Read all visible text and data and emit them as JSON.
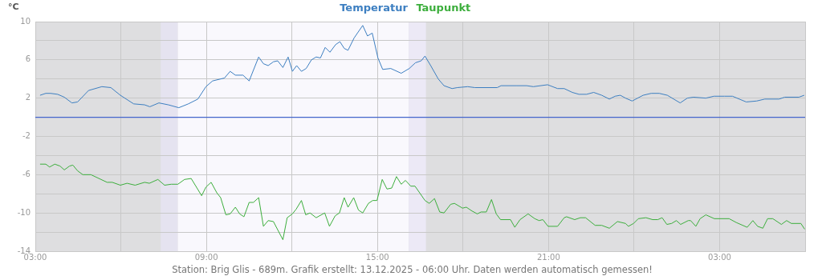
{
  "chart_data": {
    "type": "line",
    "ylabel": "°C",
    "legend": "top",
    "grid": true,
    "marker": "none",
    "annotations": [
      "Station: Brig Glis - 689m. Grafik erstellt: 13.12.2025 - 06:00 Uhr. Daten werden automatisch gemessen!"
    ],
    "xlim": [
      "2025-12-12T03:00",
      "2025-12-13T06:00"
    ],
    "xticks": [
      {
        "value": "2025-12-12T03:00",
        "label": "03:00"
      },
      {
        "value": "2025-12-12T06:00",
        "label": null
      },
      {
        "value": "2025-12-12T09:00",
        "label": "09:00"
      },
      {
        "value": "2025-12-12T12:00",
        "label": null
      },
      {
        "value": "2025-12-12T15:00",
        "label": "15:00"
      },
      {
        "value": "2025-12-12T18:00",
        "label": null
      },
      {
        "value": "2025-12-12T21:00",
        "label": "21:00"
      },
      {
        "value": "2025-12-13T00:00",
        "label": null
      },
      {
        "value": "2025-12-13T03:00",
        "label": "03:00"
      },
      {
        "value": "2025-12-13T06:00",
        "label": null
      }
    ],
    "ylim": [
      -14,
      10
    ],
    "yticks": [
      -14,
      {
        "value": -12,
        "label": null
      },
      -10,
      {
        "value": -8,
        "label": null
      },
      -6,
      {
        "value": -4,
        "label": null
      },
      -2,
      {
        "value": 0,
        "label": null
      },
      2,
      {
        "value": 4,
        "label": null
      },
      6,
      {
        "value": 8,
        "label": null
      },
      10
    ],
    "ref_lines": [
      {
        "axis": "y",
        "value": 0,
        "label": null,
        "color": "#4466cc"
      }
    ],
    "bands": [
      {
        "axis": "x",
        "from": "2025-12-12T07:24",
        "to": "2025-12-12T08:00",
        "label": null,
        "color": "#e5e3f0"
      },
      {
        "axis": "x",
        "from": "2025-12-12T08:00",
        "to": "2025-12-12T16:06",
        "label": null,
        "color": "#f9f8fd"
      },
      {
        "axis": "x",
        "from": "2025-12-12T16:06",
        "to": "2025-12-12T16:42",
        "label": null,
        "color": "#ece9f6"
      }
    ],
    "series": [
      {
        "name": "Temperatur",
        "color": "#3d7fc1",
        "x": [
          "2025-12-12T03:10",
          "2025-12-12T03:22",
          "2025-12-12T03:32",
          "2025-12-12T03:47",
          "2025-12-12T04:01",
          "2025-12-12T04:17",
          "2025-12-12T04:29",
          "2025-12-12T04:52",
          "2025-12-12T05:20",
          "2025-12-12T05:39",
          "2025-12-12T05:59",
          "2025-12-12T06:27",
          "2025-12-12T06:50",
          "2025-12-12T07:01",
          "2025-12-12T07:20",
          "2025-12-12T07:40",
          "2025-12-12T08:02",
          "2025-12-12T08:22",
          "2025-12-12T08:42",
          "2025-12-12T08:59",
          "2025-12-12T09:13",
          "2025-12-12T09:38",
          "2025-12-12T09:50",
          "2025-12-12T10:01",
          "2025-12-12T10:17",
          "2025-12-12T10:30",
          "2025-12-12T10:50",
          "2025-12-12T11:00",
          "2025-12-12T11:10",
          "2025-12-12T11:21",
          "2025-12-12T11:30",
          "2025-12-12T11:41",
          "2025-12-12T11:52",
          "2025-12-12T12:01",
          "2025-12-12T12:10",
          "2025-12-12T12:20",
          "2025-12-12T12:30",
          "2025-12-12T12:41",
          "2025-12-12T12:51",
          "2025-12-12T13:00",
          "2025-12-12T13:10",
          "2025-12-12T13:20",
          "2025-12-12T13:32",
          "2025-12-12T13:41",
          "2025-12-12T13:50",
          "2025-12-12T13:58",
          "2025-12-12T14:11",
          "2025-12-12T14:29",
          "2025-12-12T14:39",
          "2025-12-12T14:49",
          "2025-12-12T15:01",
          "2025-12-12T15:11",
          "2025-12-12T15:28",
          "2025-12-12T15:50",
          "2025-12-12T16:07",
          "2025-12-12T16:20",
          "2025-12-12T16:32",
          "2025-12-12T16:40",
          "2025-12-12T16:52",
          "2025-12-12T17:08",
          "2025-12-12T17:20",
          "2025-12-12T17:37",
          "2025-12-12T17:48",
          "2025-12-12T18:10",
          "2025-12-12T18:25",
          "2025-12-12T19:12",
          "2025-12-12T19:20",
          "2025-12-12T19:52",
          "2025-12-12T20:14",
          "2025-12-12T20:28",
          "2025-12-12T20:58",
          "2025-12-12T21:19",
          "2025-12-12T21:33",
          "2025-12-12T21:50",
          "2025-12-12T22:04",
          "2025-12-12T22:20",
          "2025-12-12T22:35",
          "2025-12-12T22:52",
          "2025-12-12T23:08",
          "2025-12-12T23:20",
          "2025-12-12T23:31",
          "2025-12-12T23:42",
          "2025-12-12T23:56",
          "2025-12-13T00:19",
          "2025-12-13T00:36",
          "2025-12-13T00:53",
          "2025-12-13T01:10",
          "2025-12-13T01:37",
          "2025-12-13T01:52",
          "2025-12-13T02:05",
          "2025-12-13T02:31",
          "2025-12-13T02:48",
          "2025-12-13T03:10",
          "2025-12-13T03:27",
          "2025-12-13T03:56",
          "2025-12-13T04:18",
          "2025-12-13T04:35",
          "2025-12-13T05:05",
          "2025-12-13T05:17",
          "2025-12-13T05:47",
          "2025-12-13T05:58"
        ],
        "values": [
          2.3,
          2.5,
          2.5,
          2.4,
          2.1,
          1.5,
          1.6,
          2.8,
          3.2,
          3.1,
          2.3,
          1.4,
          1.3,
          1.1,
          1.5,
          1.3,
          1.0,
          1.4,
          1.9,
          3.2,
          3.8,
          4.1,
          4.8,
          4.4,
          4.4,
          3.8,
          6.3,
          5.6,
          5.4,
          5.8,
          5.9,
          5.2,
          6.3,
          4.8,
          5.4,
          4.8,
          5.1,
          6.0,
          6.3,
          6.2,
          7.3,
          6.8,
          7.6,
          7.9,
          7.2,
          7.0,
          8.3,
          9.6,
          8.5,
          8.8,
          6.2,
          5.0,
          5.1,
          4.6,
          5.1,
          5.7,
          5.9,
          6.4,
          5.4,
          4.0,
          3.3,
          3.0,
          3.1,
          3.2,
          3.1,
          3.1,
          3.3,
          3.3,
          3.3,
          3.2,
          3.4,
          3.0,
          3.0,
          2.6,
          2.4,
          2.4,
          2.6,
          2.3,
          1.9,
          2.2,
          2.3,
          2.0,
          1.7,
          2.3,
          2.5,
          2.5,
          2.3,
          1.5,
          2.0,
          2.1,
          2.0,
          2.2,
          2.2,
          2.2,
          1.6,
          1.7,
          1.9,
          1.9,
          2.1,
          2.1,
          2.3
        ]
      },
      {
        "name": "Taupunkt",
        "color": "#3cae3c",
        "x": [
          "2025-12-12T03:10",
          "2025-12-12T03:22",
          "2025-12-12T03:30",
          "2025-12-12T03:41",
          "2025-12-12T03:52",
          "2025-12-12T04:01",
          "2025-12-12T04:12",
          "2025-12-12T04:19",
          "2025-12-12T04:29",
          "2025-12-12T04:40",
          "2025-12-12T04:57",
          "2025-12-12T05:31",
          "2025-12-12T05:42",
          "2025-12-12T05:59",
          "2025-12-12T06:13",
          "2025-12-12T06:30",
          "2025-12-12T06:50",
          "2025-12-12T07:00",
          "2025-12-12T07:18",
          "2025-12-12T07:32",
          "2025-12-12T07:46",
          "2025-12-12T08:00",
          "2025-12-12T08:14",
          "2025-12-12T08:28",
          "2025-12-12T08:50",
          "2025-12-12T08:59",
          "2025-12-12T09:10",
          "2025-12-12T09:22",
          "2025-12-12T09:30",
          "2025-12-12T09:41",
          "2025-12-12T09:50",
          "2025-12-12T10:01",
          "2025-12-12T10:10",
          "2025-12-12T10:19",
          "2025-12-12T10:30",
          "2025-12-12T10:39",
          "2025-12-12T10:50",
          "2025-12-12T11:00",
          "2025-12-12T11:10",
          "2025-12-12T11:21",
          "2025-12-12T11:41",
          "2025-12-12T11:50",
          "2025-12-12T12:01",
          "2025-12-12T12:09",
          "2025-12-12T12:20",
          "2025-12-12T12:29",
          "2025-12-12T12:38",
          "2025-12-12T12:51",
          "2025-12-12T13:09",
          "2025-12-12T13:19",
          "2025-12-12T13:31",
          "2025-12-12T13:40",
          "2025-12-12T13:50",
          "2025-12-12T13:58",
          "2025-12-12T14:10",
          "2025-12-12T14:20",
          "2025-12-12T14:29",
          "2025-12-12T14:41",
          "2025-12-12T14:50",
          "2025-12-12T14:59",
          "2025-12-12T15:10",
          "2025-12-12T15:20",
          "2025-12-12T15:30",
          "2025-12-12T15:40",
          "2025-12-12T15:50",
          "2025-12-12T15:59",
          "2025-12-12T16:10",
          "2025-12-12T16:19",
          "2025-12-12T16:40",
          "2025-12-12T16:49",
          "2025-12-12T17:00",
          "2025-12-12T17:11",
          "2025-12-12T17:20",
          "2025-12-12T17:34",
          "2025-12-12T17:42",
          "2025-12-12T17:59",
          "2025-12-12T18:07",
          "2025-12-12T18:19",
          "2025-12-12T18:30",
          "2025-12-12T18:38",
          "2025-12-12T18:49",
          "2025-12-12T19:00",
          "2025-12-12T19:10",
          "2025-12-12T19:19",
          "2025-12-12T19:40",
          "2025-12-12T19:49",
          "2025-12-12T20:00",
          "2025-12-12T20:17",
          "2025-12-12T20:31",
          "2025-12-12T20:40",
          "2025-12-12T20:48",
          "2025-12-12T20:59",
          "2025-12-12T21:19",
          "2025-12-12T21:33",
          "2025-12-12T21:38",
          "2025-12-12T21:55",
          "2025-12-12T22:07",
          "2025-12-12T22:18",
          "2025-12-12T22:38",
          "2025-12-12T22:52",
          "2025-12-12T23:08",
          "2025-12-12T23:25",
          "2025-12-12T23:42",
          "2025-12-12T23:48",
          "2025-12-12T23:59",
          "2025-12-13T00:09",
          "2025-12-13T00:25",
          "2025-12-13T00:39",
          "2025-12-13T00:50",
          "2025-12-13T00:59",
          "2025-12-13T01:09",
          "2025-12-13T01:19",
          "2025-12-13T01:29",
          "2025-12-13T01:38",
          "2025-12-13T01:54",
          "2025-12-13T01:59",
          "2025-12-13T02:10",
          "2025-12-13T02:19",
          "2025-12-13T02:31",
          "2025-12-13T02:49",
          "2025-12-13T03:20",
          "2025-12-13T03:35",
          "2025-12-13T03:58",
          "2025-12-13T04:10",
          "2025-12-13T04:20",
          "2025-12-13T04:31",
          "2025-12-13T04:41",
          "2025-12-13T04:52",
          "2025-12-13T05:10",
          "2025-12-13T05:21",
          "2025-12-13T05:31",
          "2025-12-13T05:51",
          "2025-12-13T05:59"
        ],
        "values": [
          -4.9,
          -4.9,
          -5.2,
          -4.9,
          -5.1,
          -5.5,
          -5.1,
          -5.0,
          -5.6,
          -6.0,
          -6.0,
          -6.8,
          -6.8,
          -7.1,
          -6.9,
          -7.1,
          -6.8,
          -6.9,
          -6.5,
          -7.1,
          -7.0,
          -7.0,
          -6.5,
          -6.4,
          -8.2,
          -7.3,
          -6.8,
          -7.9,
          -8.4,
          -10.2,
          -10.1,
          -9.4,
          -10.1,
          -10.4,
          -8.9,
          -8.9,
          -8.4,
          -11.4,
          -10.8,
          -10.9,
          -12.8,
          -10.5,
          -10.1,
          -9.6,
          -8.7,
          -10.2,
          -10.0,
          -10.5,
          -10.0,
          -11.4,
          -10.3,
          -10.0,
          -8.4,
          -9.4,
          -8.4,
          -9.7,
          -10.0,
          -9.0,
          -8.7,
          -8.7,
          -6.5,
          -7.5,
          -7.4,
          -6.2,
          -7.0,
          -6.6,
          -7.2,
          -7.2,
          -8.7,
          -9.0,
          -8.5,
          -9.9,
          -10.0,
          -9.1,
          -9.0,
          -9.5,
          -9.4,
          -9.8,
          -10.1,
          -9.9,
          -9.9,
          -8.6,
          -10.1,
          -10.7,
          -10.7,
          -11.5,
          -10.7,
          -10.1,
          -10.6,
          -10.8,
          -10.7,
          -11.4,
          -11.4,
          -10.5,
          -10.4,
          -10.7,
          -10.5,
          -10.5,
          -11.3,
          -11.3,
          -11.6,
          -10.9,
          -11.1,
          -11.4,
          -11.1,
          -10.6,
          -10.5,
          -10.7,
          -10.7,
          -10.5,
          -11.2,
          -11.1,
          -10.8,
          -11.2,
          -10.8,
          -10.8,
          -11.4,
          -10.6,
          -10.2,
          -10.6,
          -10.6,
          -11.0,
          -11.5,
          -10.8,
          -11.4,
          -11.6,
          -10.6,
          -10.6,
          -11.2,
          -10.8,
          -11.1,
          -11.1,
          -11.7
        ]
      }
    ]
  }
}
